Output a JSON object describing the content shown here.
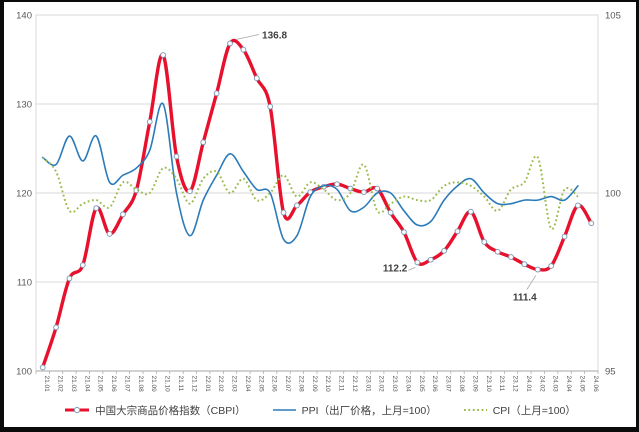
{
  "chart_data": {
    "type": "line",
    "title": "",
    "categories": [
      "21.01",
      "21.02",
      "21.03",
      "21.04",
      "21.05",
      "21.06",
      "21.07",
      "21.08",
      "21.09",
      "21.10",
      "21.11",
      "21.12",
      "22.01",
      "22.02",
      "22.03",
      "22.04",
      "22.05",
      "22.06",
      "22.07",
      "22.08",
      "22.09",
      "22.10",
      "22.11",
      "22.12",
      "23.01",
      "23.02",
      "23.03",
      "23.04",
      "23.05",
      "23.06",
      "23.07",
      "23.08",
      "23.09",
      "23.10",
      "23.11",
      "23.12",
      "24.01",
      "24.02",
      "24.03",
      "24.04",
      "24.05",
      "24.06"
    ],
    "series": [
      {
        "name": "中国大宗商品价格指数（CBPI）",
        "axis": "left",
        "color": "#e8112d",
        "style": "solid-markers",
        "marker": {
          "fill": "#ffffff",
          "stroke": "#7f9db9"
        },
        "values": [
          100.4,
          104.9,
          110.4,
          111.9,
          118.3,
          115.4,
          117.6,
          120.3,
          128.0,
          135.5,
          124.1,
          120.2,
          125.7,
          131.2,
          136.8,
          136.1,
          132.9,
          129.7,
          117.8,
          118.6,
          120.1,
          120.7,
          121.0,
          120.5,
          120.1,
          120.5,
          117.8,
          115.6,
          112.2,
          112.5,
          113.5,
          115.7,
          117.9,
          114.5,
          113.4,
          112.8,
          112.0,
          111.4,
          111.8,
          115.1,
          118.6,
          116.6
        ]
      },
      {
        "name": "PPI（出厂价格，上月=100）",
        "axis": "right",
        "color": "#2b7bba",
        "style": "solid",
        "values": [
          101.0,
          100.8,
          101.6,
          100.9,
          101.6,
          100.3,
          100.5,
          100.7,
          101.2,
          102.5,
          100.0,
          98.8,
          99.8,
          100.5,
          101.1,
          100.6,
          100.1,
          100.0,
          98.7,
          98.8,
          99.9,
          100.2,
          100.1,
          99.5,
          99.6,
          100.0,
          100.0,
          99.5,
          99.1,
          99.2,
          99.8,
          100.2,
          100.4,
          100.0,
          99.7,
          99.7,
          99.8,
          99.8,
          99.9,
          99.8,
          100.2,
          null
        ]
      },
      {
        "name": "CPI（上月=100）",
        "axis": "right",
        "color": "#9cbb4e",
        "style": "dotted",
        "values": [
          101.0,
          100.6,
          99.5,
          99.7,
          99.8,
          99.6,
          100.3,
          100.1,
          100.0,
          100.7,
          100.4,
          99.7,
          100.4,
          100.6,
          100.0,
          100.4,
          99.8,
          100.0,
          100.5,
          99.9,
          100.3,
          100.1,
          99.8,
          100.0,
          100.8,
          99.5,
          99.7,
          99.9,
          99.8,
          99.8,
          100.2,
          100.3,
          100.2,
          99.9,
          99.5,
          100.1,
          100.3,
          101.0,
          99.0,
          100.1,
          99.9,
          null
        ]
      }
    ],
    "axes": {
      "left": {
        "min": 100,
        "max": 140,
        "ticks": [
          100,
          110,
          120,
          130,
          140
        ]
      },
      "right": {
        "min": 95,
        "max": 105,
        "ticks": [
          95,
          100,
          105
        ]
      }
    },
    "grid": true,
    "legend_position": "bottom",
    "annotations": [
      {
        "text": "136.8",
        "category": "22.03",
        "value": 136.8,
        "anchor": "start",
        "label_offset": [
          32,
          -5
        ],
        "leader": [
          [
            6,
            -4
          ],
          [
            29,
            -9
          ]
        ]
      },
      {
        "text": "112.2",
        "category": "23.05",
        "value": 112.2,
        "anchor": "end",
        "label_offset": [
          -10,
          9
        ],
        "leader": [
          [
            -2,
            5
          ],
          [
            -9,
            8
          ]
        ]
      },
      {
        "text": "111.4",
        "category": "24.02",
        "value": 111.4,
        "anchor": "middle",
        "label_offset": [
          -13,
          31
        ],
        "leader": [
          [
            -2,
            6
          ],
          [
            -11,
            20
          ]
        ]
      }
    ],
    "colors": {
      "gridline": "#d9d9d9",
      "axis_line": "#a6a6a6",
      "tick_label": "#595959",
      "annotation_text": "#3f3f3f",
      "leader_line": "#a6a6a6",
      "frame": "#0b0b0b"
    }
  }
}
